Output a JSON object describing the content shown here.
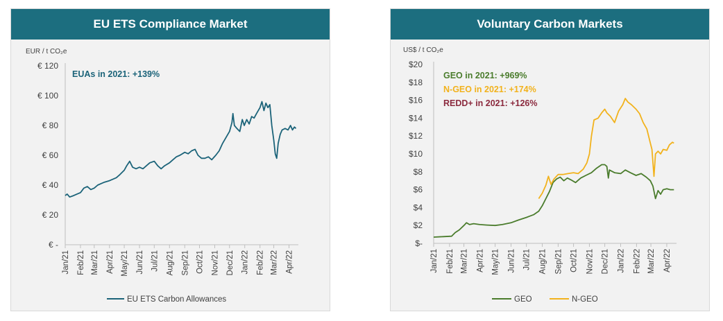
{
  "colors": {
    "banner": "#1c6e7f",
    "eua_line": "#1b6379",
    "eua_annot": "#1b6379",
    "geo": "#4a7c2c",
    "ngeo": "#f2b21c",
    "redd": "#8b2a3e",
    "axis": "#bfbfbf",
    "tick_text": "#404040"
  },
  "chart_data": [
    {
      "type": "line",
      "title": "EU ETS Compliance Market",
      "ylabel": "EUR / t CO₂e",
      "ylim": [
        0,
        120
      ],
      "y_ticks": [
        {
          "value": 0,
          "label": "€ -"
        },
        {
          "value": 20,
          "label": "€ 20"
        },
        {
          "value": 40,
          "label": "€ 40"
        },
        {
          "value": 60,
          "label": "€ 60"
        },
        {
          "value": 80,
          "label": "€ 80"
        },
        {
          "value": 100,
          "label": "€ 100"
        },
        {
          "value": 120,
          "label": "€ 120"
        }
      ],
      "x_ticks": [
        "Jan/21",
        "Feb/21",
        "Mar/21",
        "Apr/21",
        "May/21",
        "Jun/21",
        "Jul/21",
        "Aug/21",
        "Sep/21",
        "Oct/21",
        "Nov/21",
        "Dec/21",
        "Jan/22",
        "Feb/22",
        "Mar/22",
        "Apr/22"
      ],
      "annotations": [
        {
          "text": "EUAs in 2021: +139%",
          "color_key": "eua_annot"
        }
      ],
      "legend": "bottom",
      "series": [
        {
          "name": "EU ETS Carbon Allowances",
          "color_key": "eua_line",
          "points": [
            [
              "2021-01-01",
              33
            ],
            [
              "2021-01-05",
              34
            ],
            [
              "2021-01-10",
              32
            ],
            [
              "2021-01-18",
              33
            ],
            [
              "2021-01-25",
              34
            ],
            [
              "2021-02-01",
              35
            ],
            [
              "2021-02-08",
              38
            ],
            [
              "2021-02-15",
              39
            ],
            [
              "2021-02-22",
              37
            ],
            [
              "2021-03-01",
              38
            ],
            [
              "2021-03-08",
              40
            ],
            [
              "2021-03-15",
              41
            ],
            [
              "2021-03-22",
              42
            ],
            [
              "2021-04-01",
              43
            ],
            [
              "2021-04-08",
              44
            ],
            [
              "2021-04-15",
              45
            ],
            [
              "2021-04-22",
              47
            ],
            [
              "2021-05-01",
              50
            ],
            [
              "2021-05-06",
              53
            ],
            [
              "2021-05-12",
              56
            ],
            [
              "2021-05-18",
              52
            ],
            [
              "2021-05-25",
              51
            ],
            [
              "2021-06-01",
              52
            ],
            [
              "2021-06-08",
              51
            ],
            [
              "2021-06-15",
              53
            ],
            [
              "2021-06-22",
              55
            ],
            [
              "2021-07-01",
              56
            ],
            [
              "2021-07-08",
              53
            ],
            [
              "2021-07-15",
              51
            ],
            [
              "2021-07-22",
              53
            ],
            [
              "2021-08-01",
              55
            ],
            [
              "2021-08-08",
              57
            ],
            [
              "2021-08-15",
              59
            ],
            [
              "2021-08-22",
              60
            ],
            [
              "2021-09-01",
              62
            ],
            [
              "2021-09-08",
              61
            ],
            [
              "2021-09-15",
              63
            ],
            [
              "2021-09-22",
              64
            ],
            [
              "2021-09-28",
              60
            ],
            [
              "2021-10-05",
              58
            ],
            [
              "2021-10-12",
              58
            ],
            [
              "2021-10-19",
              59
            ],
            [
              "2021-10-26",
              57
            ],
            [
              "2021-11-03",
              60
            ],
            [
              "2021-11-10",
              63
            ],
            [
              "2021-11-17",
              68
            ],
            [
              "2021-11-24",
              72
            ],
            [
              "2021-12-01",
              76
            ],
            [
              "2021-12-06",
              82
            ],
            [
              "2021-12-08",
              88
            ],
            [
              "2021-12-11",
              80
            ],
            [
              "2021-12-16",
              78
            ],
            [
              "2021-12-22",
              76
            ],
            [
              "2021-12-27",
              84
            ],
            [
              "2021-12-31",
              80
            ],
            [
              "2022-01-05",
              84
            ],
            [
              "2022-01-10",
              81
            ],
            [
              "2022-01-15",
              86
            ],
            [
              "2022-01-20",
              85
            ],
            [
              "2022-01-25",
              88
            ],
            [
              "2022-02-01",
              92
            ],
            [
              "2022-02-05",
              96
            ],
            [
              "2022-02-09",
              90
            ],
            [
              "2022-02-13",
              95
            ],
            [
              "2022-02-17",
              92
            ],
            [
              "2022-02-21",
              94
            ],
            [
              "2022-02-25",
              80
            ],
            [
              "2022-03-01",
              70
            ],
            [
              "2022-03-04",
              61
            ],
            [
              "2022-03-07",
              58
            ],
            [
              "2022-03-10",
              68
            ],
            [
              "2022-03-14",
              74
            ],
            [
              "2022-03-18",
              77
            ],
            [
              "2022-03-24",
              78
            ],
            [
              "2022-03-30",
              77
            ],
            [
              "2022-04-04",
              80
            ],
            [
              "2022-04-08",
              77
            ],
            [
              "2022-04-12",
              79
            ],
            [
              "2022-04-15",
              78
            ]
          ]
        }
      ]
    },
    {
      "type": "line",
      "title": "Voluntary Carbon Markets",
      "ylabel": "US$ / t CO₂e",
      "ylim": [
        0,
        20
      ],
      "y_ticks": [
        {
          "value": 0,
          "label": "$-"
        },
        {
          "value": 2,
          "label": "$2"
        },
        {
          "value": 4,
          "label": "$4"
        },
        {
          "value": 6,
          "label": "$6"
        },
        {
          "value": 8,
          "label": "$8"
        },
        {
          "value": 10,
          "label": "$10"
        },
        {
          "value": 12,
          "label": "$12"
        },
        {
          "value": 14,
          "label": "$14"
        },
        {
          "value": 16,
          "label": "$16"
        },
        {
          "value": 18,
          "label": "$18"
        },
        {
          "value": 20,
          "label": "$20"
        }
      ],
      "x_ticks": [
        "Jan/21",
        "Feb/21",
        "Mar/21",
        "Apr/21",
        "May/21",
        "Jun/21",
        "Jul/21",
        "Aug/21",
        "Sep/21",
        "Oct/21",
        "Nov/21",
        "Dec/21",
        "Jan/22",
        "Feb/22",
        "Mar/22",
        "Apr/22"
      ],
      "annotations": [
        {
          "text": "GEO in 2021: +969%",
          "color_key": "geo"
        },
        {
          "text": "N-GEO in 2021: +174%",
          "color_key": "ngeo"
        },
        {
          "text": "REDD+ in 2021: +126%",
          "color_key": "redd"
        }
      ],
      "legend": "bottom",
      "series": [
        {
          "name": "GEO",
          "color_key": "geo",
          "points": [
            [
              "2021-01-01",
              0.7
            ],
            [
              "2021-01-20",
              0.75
            ],
            [
              "2021-02-05",
              0.8
            ],
            [
              "2021-02-12",
              1.2
            ],
            [
              "2021-02-20",
              1.5
            ],
            [
              "2021-03-01",
              2.0
            ],
            [
              "2021-03-06",
              2.3
            ],
            [
              "2021-03-12",
              2.1
            ],
            [
              "2021-03-20",
              2.2
            ],
            [
              "2021-04-01",
              2.1
            ],
            [
              "2021-04-15",
              2.05
            ],
            [
              "2021-05-01",
              2.0
            ],
            [
              "2021-05-15",
              2.1
            ],
            [
              "2021-06-01",
              2.3
            ],
            [
              "2021-06-15",
              2.6
            ],
            [
              "2021-07-01",
              2.9
            ],
            [
              "2021-07-15",
              3.2
            ],
            [
              "2021-07-25",
              3.6
            ],
            [
              "2021-08-01",
              4.2
            ],
            [
              "2021-08-08",
              5.0
            ],
            [
              "2021-08-15",
              5.8
            ],
            [
              "2021-08-22",
              6.8
            ],
            [
              "2021-08-29",
              7.2
            ],
            [
              "2021-09-05",
              7.4
            ],
            [
              "2021-09-12",
              7.0
            ],
            [
              "2021-09-19",
              7.3
            ],
            [
              "2021-09-26",
              7.1
            ],
            [
              "2021-10-05",
              6.8
            ],
            [
              "2021-10-15",
              7.3
            ],
            [
              "2021-10-25",
              7.6
            ],
            [
              "2021-11-05",
              7.9
            ],
            [
              "2021-11-15",
              8.4
            ],
            [
              "2021-11-25",
              8.8
            ],
            [
              "2021-12-01",
              8.8
            ],
            [
              "2021-12-05",
              8.6
            ],
            [
              "2021-12-08",
              7.3
            ],
            [
              "2021-12-10",
              8.2
            ],
            [
              "2021-12-20",
              7.9
            ],
            [
              "2022-01-01",
              7.8
            ],
            [
              "2022-01-10",
              8.2
            ],
            [
              "2022-01-20",
              7.9
            ],
            [
              "2022-01-31",
              7.6
            ],
            [
              "2022-02-10",
              7.8
            ],
            [
              "2022-02-20",
              7.4
            ],
            [
              "2022-02-28",
              7.0
            ],
            [
              "2022-03-05",
              6.4
            ],
            [
              "2022-03-10",
              5.0
            ],
            [
              "2022-03-15",
              5.9
            ],
            [
              "2022-03-20",
              5.5
            ],
            [
              "2022-03-25",
              6.0
            ],
            [
              "2022-04-01",
              6.1
            ],
            [
              "2022-04-08",
              6.0
            ],
            [
              "2022-04-15",
              6.0
            ]
          ]
        },
        {
          "name": "N-GEO",
          "color_key": "ngeo",
          "points": [
            [
              "2021-07-25",
              5.0
            ],
            [
              "2021-08-01",
              5.6
            ],
            [
              "2021-08-08",
              6.5
            ],
            [
              "2021-08-13",
              7.5
            ],
            [
              "2021-08-18",
              6.6
            ],
            [
              "2021-08-24",
              7.2
            ],
            [
              "2021-09-01",
              7.7
            ],
            [
              "2021-09-10",
              7.7
            ],
            [
              "2021-09-20",
              7.8
            ],
            [
              "2021-10-01",
              7.9
            ],
            [
              "2021-10-10",
              7.8
            ],
            [
              "2021-10-20",
              8.3
            ],
            [
              "2021-10-27",
              9.0
            ],
            [
              "2021-11-01",
              10.0
            ],
            [
              "2021-11-05",
              12.0
            ],
            [
              "2021-11-10",
              13.8
            ],
            [
              "2021-11-18",
              14.0
            ],
            [
              "2021-11-25",
              14.6
            ],
            [
              "2021-12-01",
              15.0
            ],
            [
              "2021-12-05",
              14.6
            ],
            [
              "2021-12-12",
              14.2
            ],
            [
              "2021-12-20",
              13.5
            ],
            [
              "2021-12-28",
              14.8
            ],
            [
              "2022-01-05",
              15.5
            ],
            [
              "2022-01-10",
              16.2
            ],
            [
              "2022-01-15",
              15.8
            ],
            [
              "2022-01-22",
              15.5
            ],
            [
              "2022-01-31",
              15.0
            ],
            [
              "2022-02-07",
              14.5
            ],
            [
              "2022-02-14",
              13.5
            ],
            [
              "2022-02-21",
              12.8
            ],
            [
              "2022-02-28",
              11.2
            ],
            [
              "2022-03-03",
              10.5
            ],
            [
              "2022-03-07",
              7.5
            ],
            [
              "2022-03-10",
              10.0
            ],
            [
              "2022-03-15",
              10.3
            ],
            [
              "2022-03-20",
              10.0
            ],
            [
              "2022-03-25",
              10.5
            ],
            [
              "2022-04-01",
              10.4
            ],
            [
              "2022-04-06",
              11.0
            ],
            [
              "2022-04-12",
              11.3
            ],
            [
              "2022-04-15",
              11.2
            ]
          ]
        }
      ]
    }
  ]
}
